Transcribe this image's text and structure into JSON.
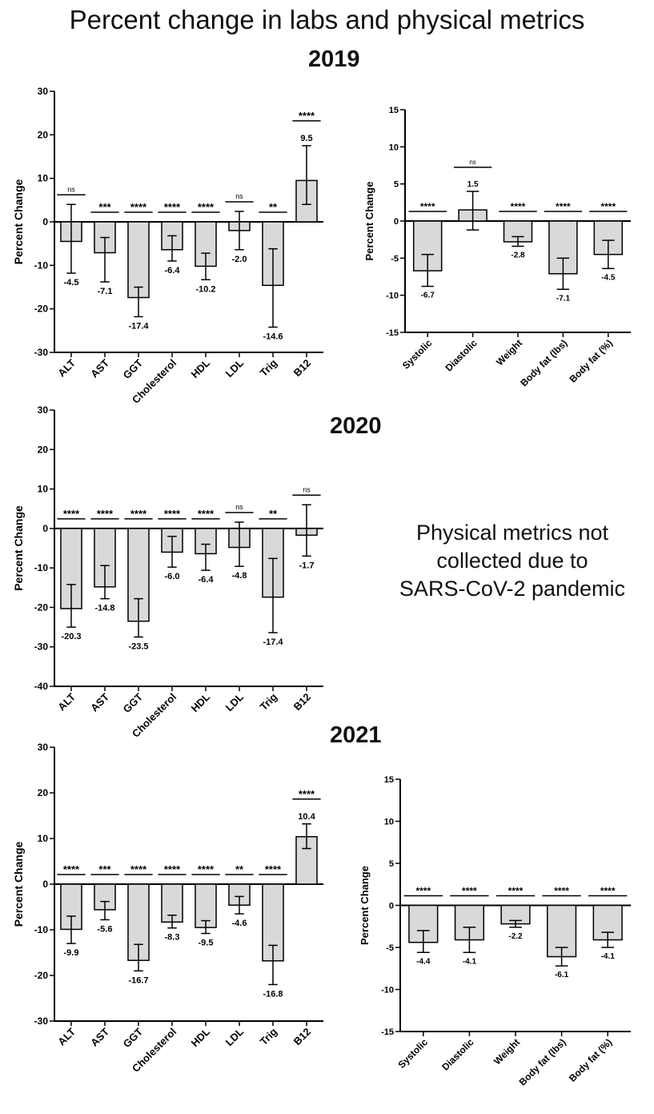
{
  "title": "Percent change in labs and physical metrics",
  "note_lines": [
    "Physical metrics not",
    "collected due to",
    "SARS-CoV-2 pandemic"
  ],
  "chart_data": [
    {
      "id": "labs-2019",
      "type": "bar",
      "year": "2019",
      "ylabel": "Percent Change",
      "ylim": [
        -30,
        30
      ],
      "yticks": [
        -30,
        -20,
        -10,
        0,
        10,
        20,
        30
      ],
      "categories": [
        "ALT",
        "AST",
        "GGT",
        "Cholesterol",
        "HDL",
        "LDL",
        "Trig",
        "B12"
      ],
      "values": [
        -4.5,
        -7.1,
        -17.4,
        -6.4,
        -10.2,
        -2.0,
        -14.6,
        9.5
      ],
      "labels": [
        "-4.5",
        "-7.1",
        "-17.4",
        "-6.4",
        "-10.2",
        "-2.0",
        "-14.6",
        "9.5"
      ],
      "error_low": [
        -11.8,
        -13.8,
        -21.8,
        -9.0,
        -13.3,
        -6.4,
        -24.2,
        4.0
      ],
      "error_high": [
        4.0,
        -3.6,
        -15.0,
        -3.2,
        -7.2,
        2.4,
        -6.2,
        17.5
      ],
      "significance": [
        "ns",
        "***",
        "****",
        "****",
        "****",
        "ns",
        "**",
        "****"
      ],
      "grid": false
    },
    {
      "id": "physical-2019",
      "type": "bar",
      "year": "2019",
      "ylabel": "Percent Change",
      "ylim": [
        -15,
        15
      ],
      "yticks": [
        -15,
        -10,
        -5,
        0,
        5,
        10,
        15
      ],
      "categories": [
        "Systolic",
        "Diastolic",
        "Weight",
        "Body fat (lbs)",
        "Body fat (%)"
      ],
      "values": [
        -6.7,
        1.5,
        -2.8,
        -7.1,
        -4.5
      ],
      "labels": [
        "-6.7",
        "1.5",
        "-2.8",
        "-7.1",
        "-4.5"
      ],
      "error_low": [
        -8.8,
        -1.2,
        -3.4,
        -9.2,
        -6.4
      ],
      "error_high": [
        -4.5,
        4.0,
        -2.1,
        -5.0,
        -2.6
      ],
      "significance": [
        "****",
        "ns",
        "****",
        "****",
        "****"
      ],
      "grid": false
    },
    {
      "id": "labs-2020",
      "type": "bar",
      "year": "2020",
      "ylabel": "Percent Change",
      "ylim": [
        -40,
        30
      ],
      "yticks": [
        -40,
        -30,
        -20,
        -10,
        0,
        10,
        20,
        30
      ],
      "categories": [
        "ALT",
        "AST",
        "GGT",
        "Cholesterol",
        "HDL",
        "LDL",
        "Trig",
        "B12"
      ],
      "values": [
        -20.3,
        -14.8,
        -23.5,
        -6.0,
        -6.4,
        -4.8,
        -17.4,
        -1.7
      ],
      "labels": [
        "-20.3",
        "-14.8",
        "-23.5",
        "-6.0",
        "-6.4",
        "-4.8",
        "-17.4",
        "-1.7"
      ],
      "error_low": [
        -25.0,
        -17.8,
        -27.5,
        -9.8,
        -10.6,
        -9.6,
        -26.4,
        -7.0
      ],
      "error_high": [
        -14.2,
        -9.4,
        -17.8,
        -2.0,
        -4.0,
        1.6,
        -7.6,
        6.0
      ],
      "significance": [
        "****",
        "****",
        "****",
        "****",
        "****",
        "ns",
        "**",
        "ns"
      ],
      "grid": false
    },
    {
      "id": "labs-2021",
      "type": "bar",
      "year": "2021",
      "ylabel": "Percent Change",
      "ylim": [
        -30,
        30
      ],
      "yticks": [
        -30,
        -20,
        -10,
        0,
        10,
        20,
        30
      ],
      "categories": [
        "ALT",
        "AST",
        "GGT",
        "Cholesterol",
        "HDL",
        "LDL",
        "Trig",
        "B12"
      ],
      "values": [
        -9.9,
        -5.6,
        -16.7,
        -8.3,
        -9.5,
        -4.6,
        -16.8,
        10.4
      ],
      "labels": [
        "-9.9",
        "-5.6",
        "-16.7",
        "-8.3",
        "-9.5",
        "-4.6",
        "-16.8",
        "10.4"
      ],
      "error_low": [
        -13.0,
        -7.8,
        -19.0,
        -9.6,
        -10.8,
        -6.5,
        -22.0,
        7.8
      ],
      "error_high": [
        -7.0,
        -3.8,
        -13.2,
        -6.8,
        -8.0,
        -2.7,
        -13.4,
        13.2
      ],
      "significance": [
        "****",
        "***",
        "****",
        "****",
        "****",
        "**",
        "****",
        "****"
      ],
      "grid": false
    },
    {
      "id": "physical-2021",
      "type": "bar",
      "year": "2021",
      "ylabel": "Percent Change",
      "ylim": [
        -15,
        15
      ],
      "yticks": [
        -15,
        -10,
        -5,
        0,
        5,
        10,
        15
      ],
      "categories": [
        "Systolic",
        "Diastolic",
        "Weight",
        "Body fat (lbs)",
        "Body fat (%)"
      ],
      "values": [
        -4.4,
        -4.1,
        -2.2,
        -6.1,
        -4.1
      ],
      "labels": [
        "-4.4",
        "-4.1",
        "-2.2",
        "-6.1",
        "-4.1"
      ],
      "error_low": [
        -5.6,
        -5.6,
        -2.6,
        -7.2,
        -5.0
      ],
      "error_high": [
        -3.0,
        -2.6,
        -1.8,
        -5.0,
        -3.2
      ],
      "significance": [
        "****",
        "****",
        "****",
        "****",
        "****"
      ],
      "grid": false
    }
  ]
}
